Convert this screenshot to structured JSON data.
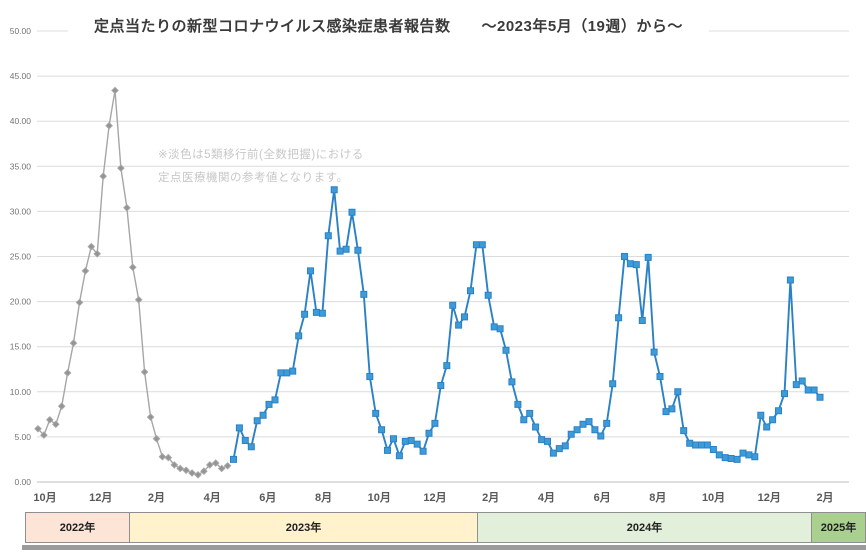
{
  "title": "定点当たりの新型コロナウイルス感染症患者報告数　　～2023年5月（19週）から～",
  "annotation": {
    "line1": "※淡色は5類移行前(全数把握)における",
    "line2": "定点医療機関の参考値となります。"
  },
  "chart_data": {
    "type": "line",
    "title": "定点当たりの新型コロナウイルス感染症患者報告数　～2023年5月（19週）から～",
    "xlabel": "",
    "ylabel": "",
    "ylim": [
      0,
      50
    ],
    "y_tick_step": 5,
    "y_tick_format": "2dp",
    "grid": true,
    "legend": "none",
    "x_tick_labels": [
      "10月",
      "12月",
      "2月",
      "4月",
      "6月",
      "8月",
      "10月",
      "12月",
      "2月",
      "4月",
      "6月",
      "8月",
      "10月",
      "12月",
      "2月"
    ],
    "series": [
      {
        "name": "5類移行前(全数把握)における定点医療機関の参考値",
        "color": "#a6a6a6",
        "marker_color": "#949494",
        "marker": "diamond",
        "values": [
          5.9,
          5.2,
          6.9,
          6.4,
          8.4,
          12.1,
          15.4,
          19.9,
          23.4,
          26.1,
          25.3,
          33.9,
          39.5,
          43.4,
          34.8,
          30.4,
          23.8,
          20.2,
          12.2,
          7.2,
          4.8,
          2.8,
          2.7,
          1.9,
          1.5,
          1.3,
          1.0,
          0.8,
          1.2,
          1.9,
          2.1,
          1.5,
          1.8
        ]
      },
      {
        "name": "定点当たりの新型コロナウイルス感染症患者報告数",
        "color": "#2b81c5",
        "marker_color": "#3d9cd8",
        "marker": "square",
        "values": [
          2.5,
          6.0,
          4.6,
          3.9,
          6.8,
          7.4,
          8.6,
          9.1,
          12.1,
          12.1,
          12.3,
          16.2,
          18.6,
          23.4,
          18.8,
          18.7,
          27.3,
          32.4,
          25.6,
          25.8,
          29.9,
          25.7,
          20.8,
          11.7,
          7.6,
          5.8,
          3.5,
          4.8,
          2.9,
          4.5,
          4.6,
          4.2,
          3.4,
          5.4,
          6.5,
          10.7,
          12.9,
          19.6,
          17.4,
          18.3,
          21.2,
          26.3,
          26.3,
          20.7,
          17.2,
          17.0,
          14.6,
          11.1,
          8.6,
          6.9,
          7.6,
          6.1,
          4.7,
          4.5,
          3.2,
          3.7,
          4.0,
          5.3,
          5.8,
          6.4,
          6.7,
          5.8,
          5.1,
          6.5,
          10.9,
          18.2,
          25.0,
          24.2,
          24.1,
          17.9,
          24.9,
          14.4,
          11.7,
          7.8,
          8.1,
          10.0,
          5.7,
          4.3,
          4.1,
          4.1,
          4.1,
          3.6,
          3.0,
          2.7,
          2.6,
          2.5,
          3.2,
          3.0,
          2.8,
          7.4,
          6.1,
          6.9,
          7.9,
          9.8,
          22.4,
          10.8,
          11.2,
          10.2,
          10.2,
          9.4
        ]
      }
    ],
    "year_bands": [
      {
        "label": "2022年",
        "color": "#fce4d6"
      },
      {
        "label": "2023年",
        "color": "#fff2cc"
      },
      {
        "label": "2024年",
        "color": "#e2efda"
      },
      {
        "label": "2025年",
        "color": "#a9d08e"
      }
    ]
  }
}
